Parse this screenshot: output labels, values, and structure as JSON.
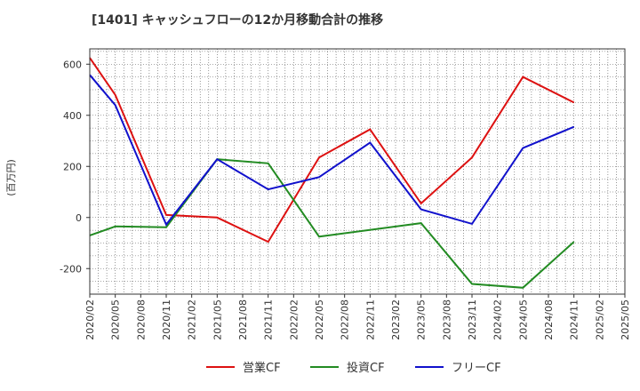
{
  "chart_data": {
    "type": "line",
    "title": "[1401]  キャッシュフローの12か月移動合計の推移",
    "ylabel": "(百万円)",
    "xlabel": "",
    "ylim": [
      -300,
      660
    ],
    "yticks": [
      600,
      400,
      200,
      0,
      -200
    ],
    "categories": [
      "2020/02",
      "2020/05",
      "2020/08",
      "2020/11",
      "2021/02",
      "2021/05",
      "2021/08",
      "2021/11",
      "2022/02",
      "2022/05",
      "2022/08",
      "2022/11",
      "2023/02",
      "2023/05",
      "2023/08",
      "2023/11",
      "2024/02",
      "2024/05",
      "2024/08",
      "2024/11",
      "2025/02",
      "2025/05"
    ],
    "series": [
      {
        "name": "営業CF",
        "color": "#dd1111",
        "points": [
          [
            "2020/02",
            625
          ],
          [
            "2020/05",
            480
          ],
          [
            "2020/11",
            10
          ],
          [
            "2021/05",
            0
          ],
          [
            "2021/11",
            -95
          ],
          [
            "2022/05",
            235
          ],
          [
            "2022/11",
            345
          ],
          [
            "2023/05",
            55
          ],
          [
            "2023/11",
            235
          ],
          [
            "2024/05",
            550
          ],
          [
            "2024/11",
            450
          ]
        ]
      },
      {
        "name": "投資CF",
        "color": "#228B22",
        "points": [
          [
            "2020/02",
            -70
          ],
          [
            "2020/05",
            -35
          ],
          [
            "2020/11",
            -38
          ],
          [
            "2021/05",
            228
          ],
          [
            "2021/11",
            212
          ],
          [
            "2022/05",
            -75
          ],
          [
            "2023/05",
            -22
          ],
          [
            "2023/11",
            -260
          ],
          [
            "2024/05",
            -275
          ],
          [
            "2024/11",
            -95
          ]
        ]
      },
      {
        "name": "フリーCF",
        "color": "#1111cc",
        "points": [
          [
            "2020/02",
            558
          ],
          [
            "2020/05",
            440
          ],
          [
            "2020/11",
            -28
          ],
          [
            "2021/05",
            228
          ],
          [
            "2021/11",
            110
          ],
          [
            "2022/05",
            158
          ],
          [
            "2022/11",
            293
          ],
          [
            "2023/05",
            32
          ],
          [
            "2023/11",
            -25
          ],
          [
            "2024/05",
            272
          ],
          [
            "2024/11",
            355
          ]
        ]
      }
    ],
    "legend_position": "bottom-center",
    "grid": true
  }
}
